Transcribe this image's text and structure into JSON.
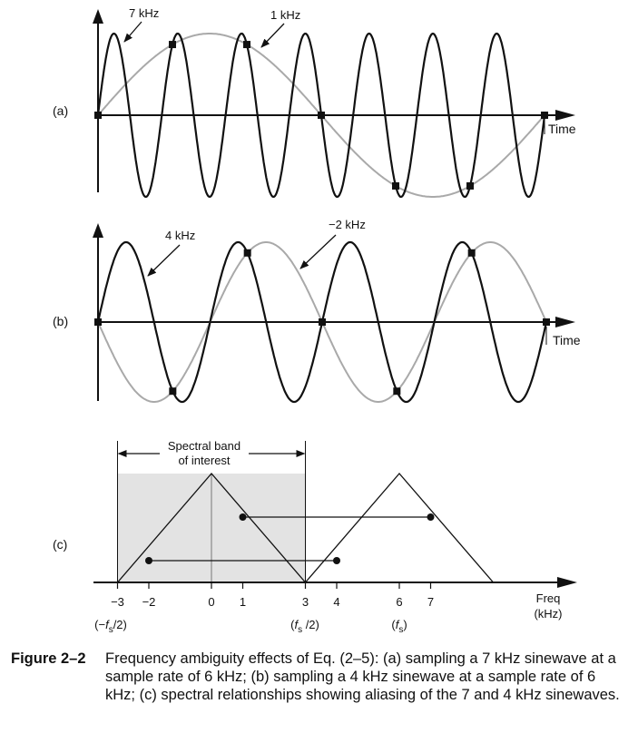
{
  "panels": {
    "a": {
      "label": "(a)",
      "axis_label": "Time",
      "fast_wave_label": "7 kHz",
      "slow_wave_label": "1 kHz"
    },
    "b": {
      "label": "(b)",
      "axis_label": "Time",
      "fast_wave_label": "4 kHz",
      "slow_wave_label": "−2 kHz"
    },
    "c": {
      "label": "(c)",
      "band_label_line1": "Spectral band",
      "band_label_line2": "of interest",
      "freq_axis_line1": "Freq",
      "freq_axis_line2": "(kHz)",
      "ticks": [
        {
          "value": -3,
          "label": "−3"
        },
        {
          "value": -2,
          "label": "−2"
        },
        {
          "value": 0,
          "label": "0"
        },
        {
          "value": 1,
          "label": "1"
        },
        {
          "value": 3,
          "label": "3"
        },
        {
          "value": 4,
          "label": "4"
        },
        {
          "value": 6,
          "label": "6"
        },
        {
          "value": 7,
          "label": "7"
        }
      ],
      "sublabels": {
        "neg_fs2": {
          "pre": "(−",
          "f": "f",
          "sub": "s",
          "post": "/2)"
        },
        "fs2": {
          "pre": "(",
          "f": "f",
          "sub": "s",
          "post": " /2)"
        },
        "fs": {
          "pre": "(",
          "f": "f",
          "sub": "s",
          "post": ")"
        }
      },
      "spectrum": {
        "triangles": [
          {
            "center": 0,
            "half_width": 3
          },
          {
            "center": 6,
            "half_width": 3
          }
        ],
        "band": [
          -3,
          3
        ],
        "alias_links": [
          {
            "from": 1,
            "to": 7,
            "level": 0.6
          },
          {
            "from": -2,
            "to": 4,
            "level": 0.2
          }
        ]
      }
    }
  },
  "caption": {
    "label": "Figure 2–2",
    "text": "Frequency ambiguity effects of Eq. (2–5): (a) sampling a 7 kHz sinewave at a sample rate of 6 kHz; (b) sampling a 4 kHz sinewave at a sample rate of 6 kHz; (c) spectral relationships showing aliasing of the 7 and 4 kHz sinewaves."
  },
  "colors": {
    "ink": "#111111",
    "gray_wave": "#a9a9a9",
    "band_fill": "#e3e3e3"
  }
}
